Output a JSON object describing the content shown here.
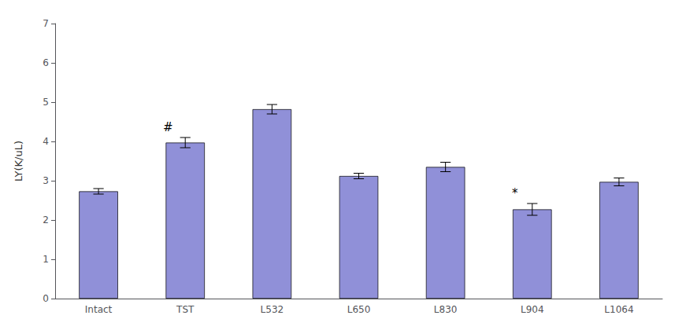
{
  "chart_data": {
    "type": "bar",
    "categories": [
      "Intact",
      "TST",
      "L532",
      "L650",
      "L830",
      "L904",
      "L1064"
    ],
    "values": [
      2.73,
      3.97,
      4.82,
      3.12,
      3.35,
      2.27,
      2.97
    ],
    "errors": [
      0.07,
      0.13,
      0.12,
      0.07,
      0.12,
      0.15,
      0.1
    ],
    "color": "#9090d8",
    "ylabel": "LY(K/uL)",
    "ylim": [
      0,
      7
    ],
    "yticks": [
      0,
      1,
      2,
      3,
      4,
      5,
      6,
      7
    ],
    "annotations": [
      {
        "category": "TST",
        "text": "#"
      },
      {
        "category": "L904",
        "text": "*"
      }
    ],
    "grid": false
  }
}
